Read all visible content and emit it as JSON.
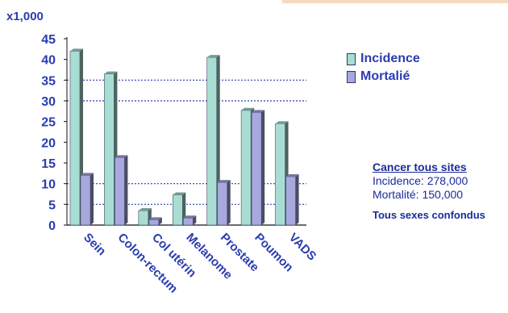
{
  "chart_data": {
    "type": "bar",
    "unit_label": "x1,000",
    "categories": [
      "Sein",
      "Colon-rectum",
      "Col utérin",
      "Melanome",
      "Prostate",
      "Poumon",
      "VADS"
    ],
    "series": [
      {
        "name": "Incidence",
        "values": [
          42,
          36.5,
          3.5,
          7.3,
          40.5,
          27.7,
          24.5
        ],
        "color": "#a9ddd3"
      },
      {
        "name": "Mortalié",
        "values": [
          12,
          16.3,
          1.3,
          1.7,
          10.3,
          27.2,
          11.7
        ],
        "color": "#a7a9de"
      }
    ],
    "y_ticks": [
      "0",
      "5",
      "10",
      "15",
      "20",
      "25",
      "30",
      "35",
      "40",
      "45"
    ],
    "ylim": [
      0,
      45
    ],
    "legend_position": "top-right",
    "grid_lines": [
      5,
      10,
      30,
      35
    ]
  },
  "info": {
    "title": "Cancer tous sites",
    "incidence": "Incidence: 278,000",
    "mortality": "Mortalité: 150,000",
    "note": "Tous sexes confondus"
  },
  "colors": {
    "label_blue": "#2a3cb0",
    "axis": "#111111",
    "gridline": "#2f3fb0"
  }
}
